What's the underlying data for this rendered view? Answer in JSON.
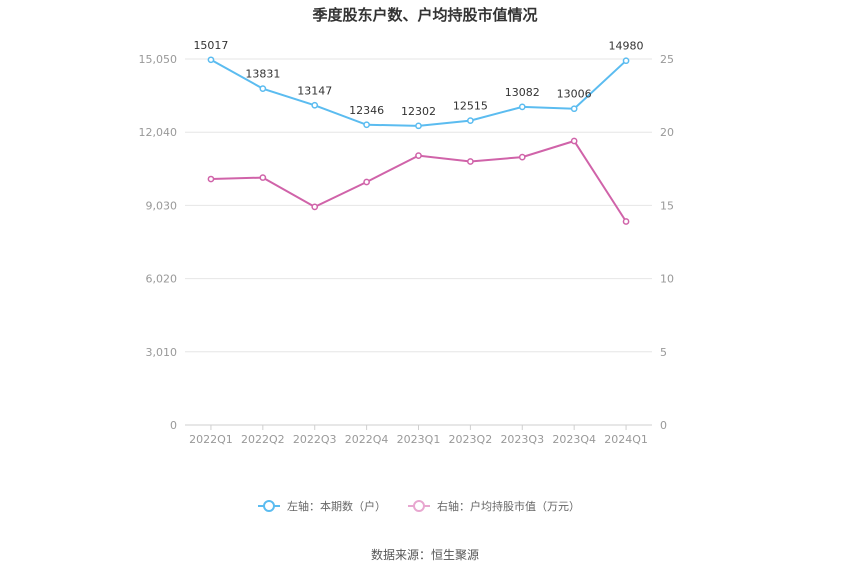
{
  "chart_data": {
    "type": "line",
    "title": "季度股东户数、户均持股市值情况",
    "categories": [
      "2022Q1",
      "2022Q2",
      "2022Q3",
      "2022Q4",
      "2023Q1",
      "2023Q2",
      "2023Q3",
      "2023Q4",
      "2024Q1"
    ],
    "left_axis": {
      "ticks": [
        "0",
        "3,010",
        "6,020",
        "9,030",
        "12,040",
        "15,050"
      ],
      "ylim": [
        0,
        15050
      ]
    },
    "right_axis": {
      "ticks": [
        "0",
        "5",
        "10",
        "15",
        "20",
        "25"
      ],
      "ylim": [
        0,
        25
      ]
    },
    "grid": true,
    "legend_position": "bottom",
    "series": [
      {
        "name": "左轴：本期数（户）",
        "axis": "left",
        "color": "#5bbcf0",
        "values": [
          15017,
          13831,
          13147,
          12346,
          12302,
          12515,
          13082,
          13006,
          14980
        ],
        "labels": [
          "15017",
          "13831",
          "13147",
          "12346",
          "12302",
          "12515",
          "13082",
          "13006",
          "14980"
        ]
      },
      {
        "name": "右轴：户均持股市值（万元）",
        "axis": "right",
        "color": "#d063a9",
        "values": [
          16.8,
          16.9,
          14.9,
          16.6,
          18.4,
          18.0,
          18.3,
          19.4,
          13.9
        ]
      }
    ],
    "source": "数据来源：恒生聚源"
  }
}
